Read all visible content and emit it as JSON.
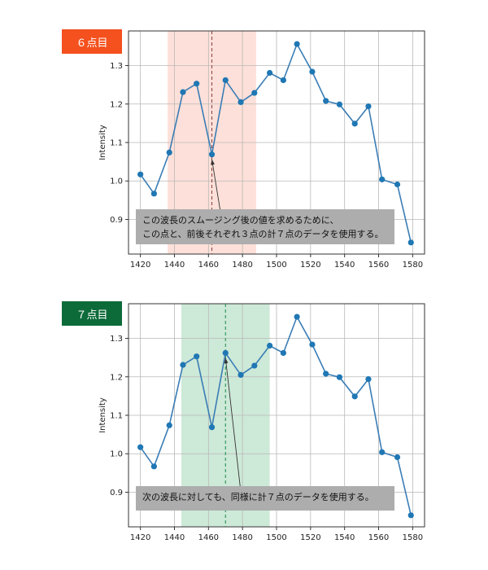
{
  "chart_data": [
    {
      "type": "line",
      "tag": "６点目",
      "ylabel": "Intensity",
      "x": [
        1420,
        1428,
        1437,
        1445,
        1453,
        1462,
        1470,
        1479,
        1487,
        1496,
        1504,
        1512,
        1521,
        1529,
        1537,
        1546,
        1554,
        1562,
        1571,
        1579
      ],
      "y": [
        1.017,
        0.967,
        1.074,
        1.231,
        1.253,
        1.069,
        1.262,
        1.205,
        1.229,
        1.281,
        1.262,
        1.356,
        1.284,
        1.208,
        1.199,
        1.149,
        1.194,
        1.004,
        0.991,
        0.84
      ],
      "xlim": [
        1413,
        1587
      ],
      "ylim": [
        0.81,
        1.39
      ],
      "xticks": [
        1420,
        1440,
        1460,
        1480,
        1500,
        1520,
        1540,
        1560,
        1580
      ],
      "yticks": [
        0.9,
        1.0,
        1.1,
        1.2,
        1.3
      ],
      "window": [
        1436,
        1488
      ],
      "center_x": 1462,
      "shade_color": "#fde0d9",
      "center_line_color": "#8a3c3c",
      "line_color": "#3a7db5",
      "marker_color": "#1f77b4",
      "grid": true,
      "annotation": {
        "lines": [
          "この波長のスムージング後の値を求めるために、",
          "この点と、前後それぞれ３点の計７点のデータを使用する。"
        ],
        "target_x": 1462,
        "target_y": 1.069
      }
    },
    {
      "type": "line",
      "tag": "７点目",
      "ylabel": "Intensity",
      "x": [
        1420,
        1428,
        1437,
        1445,
        1453,
        1462,
        1470,
        1479,
        1487,
        1496,
        1504,
        1512,
        1521,
        1529,
        1537,
        1546,
        1554,
        1562,
        1571,
        1579
      ],
      "y": [
        1.017,
        0.967,
        1.074,
        1.231,
        1.253,
        1.069,
        1.262,
        1.205,
        1.229,
        1.281,
        1.262,
        1.356,
        1.284,
        1.208,
        1.199,
        1.149,
        1.194,
        1.004,
        0.991,
        0.84
      ],
      "xlim": [
        1413,
        1587
      ],
      "ylim": [
        0.81,
        1.39
      ],
      "xticks": [
        1420,
        1440,
        1460,
        1480,
        1500,
        1520,
        1540,
        1560,
        1580
      ],
      "yticks": [
        0.9,
        1.0,
        1.1,
        1.2,
        1.3
      ],
      "window": [
        1444,
        1496
      ],
      "center_x": 1470,
      "shade_color": "#cde9d8",
      "center_line_color": "#1a8a4a",
      "line_color": "#3a7db5",
      "marker_color": "#1f77b4",
      "grid": true,
      "annotation": {
        "lines": [
          "次の波長に対しても、同様に計７点のデータを使用する。"
        ],
        "target_x": 1470,
        "target_y": 1.262
      }
    }
  ]
}
